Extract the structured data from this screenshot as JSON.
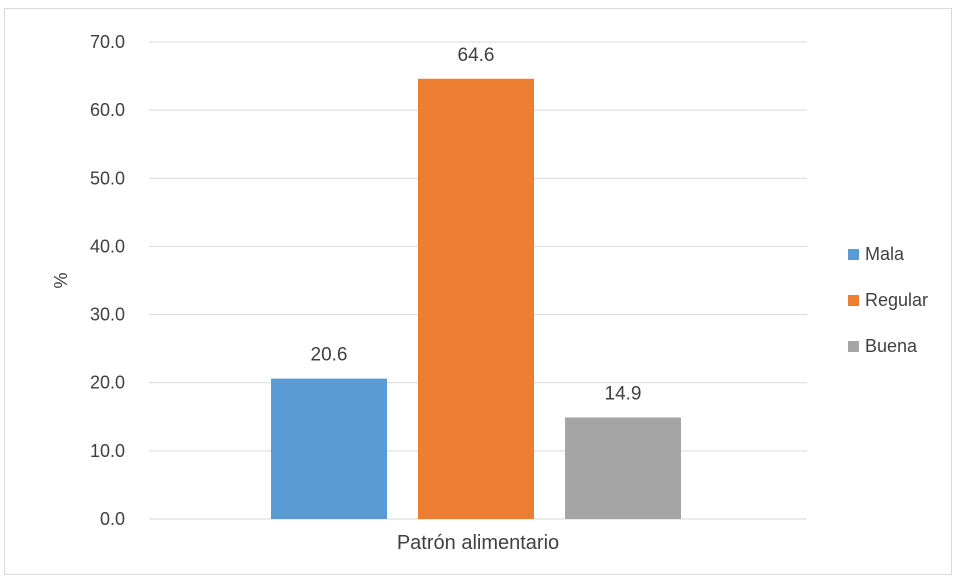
{
  "chart_data": {
    "type": "bar",
    "categories": [
      "Patrón alimentario"
    ],
    "series": [
      {
        "name": "Mala",
        "values": [
          20.6
        ],
        "color": "#5b9bd5"
      },
      {
        "name": "Regular",
        "values": [
          64.6
        ],
        "color": "#ed7d31"
      },
      {
        "name": "Buena",
        "values": [
          14.9
        ],
        "color": "#a5a5a5"
      }
    ],
    "data_labels": [
      "20.6",
      "64.6",
      "14.9"
    ],
    "title": "",
    "xlabel": "Patrón alimentario",
    "ylabel": "%",
    "ylim": [
      0,
      70
    ],
    "yticks": [
      "0.0",
      "10.0",
      "20.0",
      "30.0",
      "40.0",
      "50.0",
      "60.0",
      "70.0"
    ],
    "grid": true,
    "legend_position": "right"
  },
  "colors": {
    "grid": "#d9d9d9",
    "text": "#404040"
  }
}
